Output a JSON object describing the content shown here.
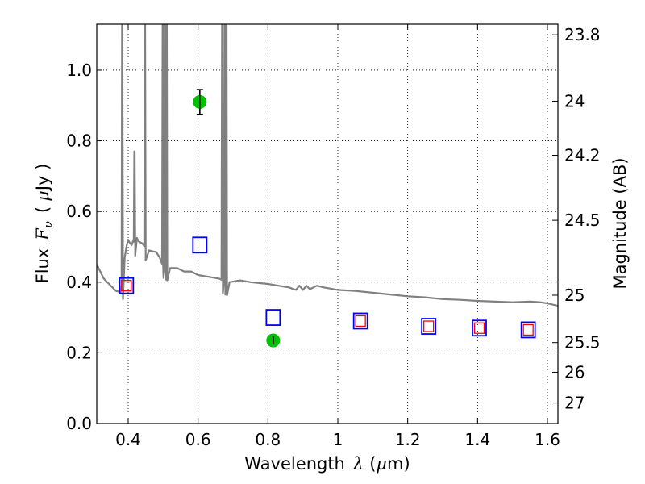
{
  "chart_data": {
    "type": "scatter",
    "xlabel_text": "Wavelength",
    "xlabel_symbol": "λ",
    "xlabel_unit_open": "(",
    "xlabel_unit_mu": "μ",
    "xlabel_unit_rest": "m)",
    "ylabel_text": "Flux",
    "ylabel_symbol": "F",
    "ylabel_subscript": "ν",
    "ylabel_unit_open": "(",
    "ylabel_unit_mu": "μ",
    "ylabel_unit_rest": "Jy )",
    "right_ylabel": "Magnitude (AB)",
    "xlim": [
      0.31,
      1.63
    ],
    "ylim": [
      0.0,
      1.13
    ],
    "x_ticks": [
      {
        "value": 0.4,
        "label": "0.4"
      },
      {
        "value": 0.6,
        "label": "0.6"
      },
      {
        "value": 0.8,
        "label": "0.8"
      },
      {
        "value": 1.0,
        "label": "1"
      },
      {
        "value": 1.2,
        "label": "1.2"
      },
      {
        "value": 1.4,
        "label": "1.4"
      },
      {
        "value": 1.6,
        "label": "1.6"
      }
    ],
    "y_ticks": [
      {
        "value": 0.0,
        "label": "0.0"
      },
      {
        "value": 0.2,
        "label": "0.2"
      },
      {
        "value": 0.4,
        "label": "0.4"
      },
      {
        "value": 0.6,
        "label": "0.6"
      },
      {
        "value": 0.8,
        "label": "0.8"
      },
      {
        "value": 1.0,
        "label": "1.0"
      }
    ],
    "right_ticks": [
      {
        "label": "23.8",
        "flux": 1.1
      },
      {
        "label": "24",
        "flux": 0.912
      },
      {
        "label": "24.2",
        "flux": 0.759
      },
      {
        "label": "24.5",
        "flux": 0.575
      },
      {
        "label": "25",
        "flux": 0.363
      },
      {
        "label": "25.5",
        "flux": 0.229
      },
      {
        "label": "26",
        "flux": 0.145
      },
      {
        "label": "27",
        "flux": 0.058
      }
    ],
    "grid": true,
    "grid_style": "dotted",
    "series": [
      {
        "kind": "model-spectrum",
        "color": "#808080",
        "continuum": [
          [
            0.31,
            0.45
          ],
          [
            0.33,
            0.41
          ],
          [
            0.35,
            0.39
          ],
          [
            0.365,
            0.375
          ],
          [
            0.378,
            0.372
          ],
          [
            0.385,
            0.4
          ],
          [
            0.39,
            0.47
          ],
          [
            0.395,
            0.5
          ],
          [
            0.4,
            0.52
          ],
          [
            0.405,
            0.51
          ],
          [
            0.41,
            0.505
          ],
          [
            0.415,
            0.52
          ],
          [
            0.42,
            0.51
          ],
          [
            0.425,
            0.525
          ],
          [
            0.43,
            0.515
          ],
          [
            0.44,
            0.51
          ],
          [
            0.45,
            0.5
          ],
          [
            0.46,
            0.49
          ],
          [
            0.47,
            0.487
          ],
          [
            0.48,
            0.485
          ],
          [
            0.49,
            0.47
          ],
          [
            0.5,
            0.45
          ],
          [
            0.52,
            0.44
          ],
          [
            0.54,
            0.44
          ],
          [
            0.56,
            0.43
          ],
          [
            0.58,
            0.43
          ],
          [
            0.6,
            0.42
          ],
          [
            0.63,
            0.415
          ],
          [
            0.66,
            0.41
          ],
          [
            0.69,
            0.4
          ],
          [
            0.72,
            0.405
          ],
          [
            0.75,
            0.4
          ],
          [
            0.78,
            0.397
          ],
          [
            0.8,
            0.395
          ],
          [
            0.83,
            0.39
          ],
          [
            0.86,
            0.385
          ],
          [
            0.88,
            0.378
          ],
          [
            0.89,
            0.39
          ],
          [
            0.9,
            0.378
          ],
          [
            0.91,
            0.39
          ],
          [
            0.92,
            0.38
          ],
          [
            0.94,
            0.39
          ],
          [
            0.96,
            0.385
          ],
          [
            1.0,
            0.378
          ],
          [
            1.05,
            0.375
          ],
          [
            1.1,
            0.37
          ],
          [
            1.15,
            0.365
          ],
          [
            1.2,
            0.36
          ],
          [
            1.25,
            0.357
          ],
          [
            1.3,
            0.352
          ],
          [
            1.35,
            0.35
          ],
          [
            1.4,
            0.347
          ],
          [
            1.45,
            0.345
          ],
          [
            1.5,
            0.343
          ],
          [
            1.55,
            0.345
          ],
          [
            1.58,
            0.343
          ],
          [
            1.6,
            0.34
          ],
          [
            1.63,
            0.333
          ]
        ],
        "emission_lines": [
          {
            "x": 0.383,
            "peak": 1.13
          },
          {
            "x": 0.418,
            "peak": 0.77
          },
          {
            "x": 0.448,
            "peak": 1.13
          },
          {
            "x": 0.499,
            "peak": 1.13
          },
          {
            "x": 0.507,
            "peak": 1.13
          },
          {
            "x": 0.51,
            "peak": 1.13
          },
          {
            "x": 0.669,
            "peak": 1.13
          },
          {
            "x": 0.676,
            "peak": 1.13
          },
          {
            "x": 0.681,
            "peak": 1.13
          }
        ]
      },
      {
        "kind": "blue-squares",
        "marker": "open-square",
        "color": "#0000ff",
        "x": [
          0.395,
          0.605,
          0.815,
          1.065,
          1.26,
          1.405,
          1.545
        ],
        "y": [
          0.39,
          0.505,
          0.3,
          0.29,
          0.275,
          0.27,
          0.265
        ]
      },
      {
        "kind": "red-squares",
        "marker": "open-square",
        "color": "#ff0000",
        "x": [
          0.395,
          1.065,
          1.26,
          1.405,
          1.545
        ],
        "y": [
          0.39,
          0.29,
          0.275,
          0.27,
          0.265
        ]
      },
      {
        "kind": "observed",
        "marker": "filled-circle",
        "color": "#00c000",
        "x": [
          0.605,
          0.815
        ],
        "y": [
          0.91,
          0.235
        ],
        "yerr": [
          0.035,
          0.012
        ]
      }
    ]
  }
}
